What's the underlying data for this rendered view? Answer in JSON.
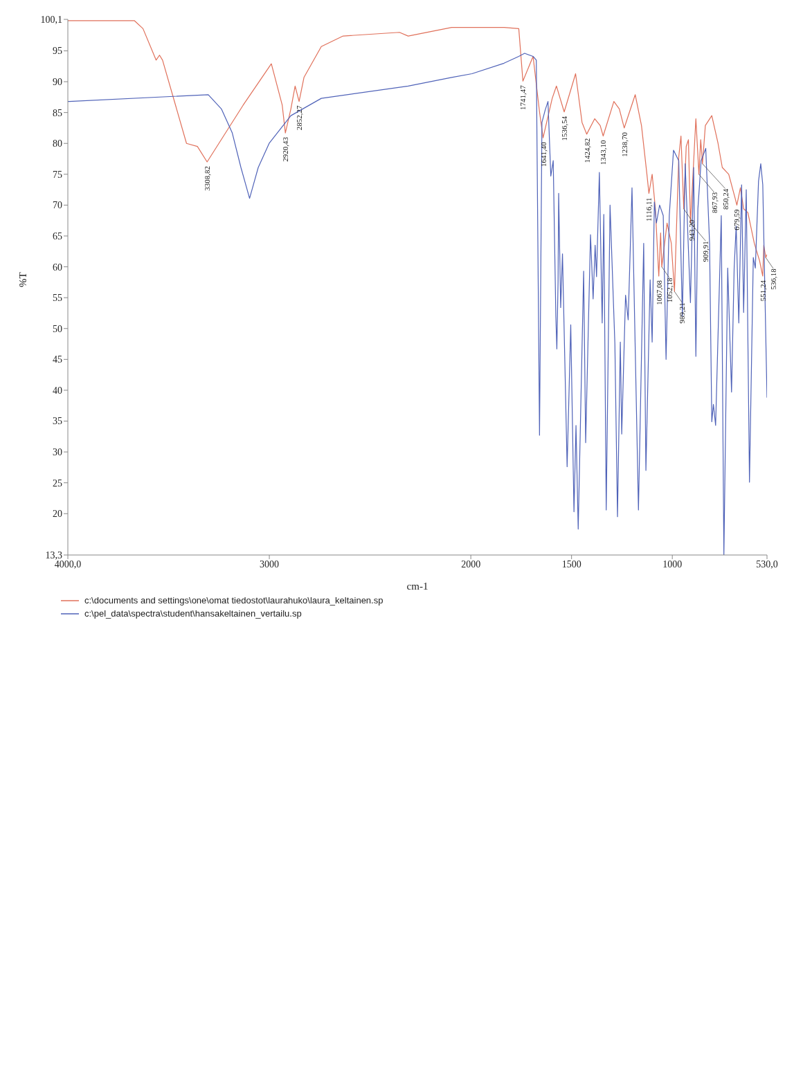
{
  "chart_data": {
    "type": "line",
    "xlabel": "cm-1",
    "ylabel": "%T",
    "xlim": [
      4000,
      530
    ],
    "xticks": [
      {
        "value": 4000,
        "label": "4000,0"
      },
      3000,
      2000,
      1500,
      1000,
      {
        "value": 530,
        "label": "530,0"
      }
    ],
    "ylim": [
      13.3,
      100.1
    ],
    "yticks": [
      {
        "value": 13.3,
        "label": "13,3"
      },
      20,
      25,
      30,
      35,
      40,
      45,
      50,
      55,
      60,
      65,
      70,
      75,
      80,
      85,
      90,
      95,
      {
        "value": 100.1,
        "label": "100,1"
      }
    ],
    "grid": false,
    "legend": "bottom",
    "marker": "none",
    "line_style": "solid",
    "series": [
      {
        "name": "c:\\documents and settings\\one\\omat tiedostot\\laurahuko\\laura_keltainen.sp",
        "color": "#e0705a",
        "x": [
          4000,
          3670,
          3627,
          3562,
          3545,
          3530,
          3411,
          3357,
          3308.82,
          3130,
          2990,
          2936,
          2920.43,
          2893,
          2872,
          2852.27,
          2828,
          2742,
          2634,
          2354,
          2311,
          2095,
          1835,
          1762,
          1741.47,
          1691,
          1659,
          1641.4,
          1596,
          1575,
          1536.54,
          1480,
          1448,
          1424.82,
          1385,
          1358,
          1343.1,
          1290,
          1263,
          1238.7,
          1184,
          1153,
          1126,
          1116.11,
          1100,
          1084,
          1067.08,
          1058,
          1052.18,
          1026,
          1005,
          989.21,
          968,
          957,
          943.2,
          931,
          920,
          909.91,
          883,
          867.93,
          859,
          850.24,
          836,
          804,
          773,
          752,
          720,
          688,
          679.59,
          662,
          646,
          625,
          593,
          567,
          551.24,
          546,
          536.18,
          530
        ],
        "values": [
          99.9,
          99.9,
          98.6,
          93.5,
          94.3,
          93.5,
          80,
          79.5,
          77,
          86.2,
          92.9,
          86.2,
          81.7,
          85.6,
          89.3,
          86.8,
          90.7,
          95.7,
          97.4,
          98,
          97.4,
          98.8,
          98.8,
          98.6,
          90.1,
          94.1,
          85.1,
          80.9,
          87.3,
          89.3,
          85.1,
          91.3,
          83.4,
          81.5,
          84,
          82.9,
          81.2,
          86.8,
          85.6,
          82.5,
          87.9,
          82.9,
          75,
          71.9,
          75,
          69.4,
          58.5,
          65.5,
          60,
          67.1,
          63.8,
          56,
          77.8,
          81.2,
          69.4,
          79.5,
          80.6,
          67.1,
          84,
          75,
          80.6,
          76.7,
          82.9,
          84.5,
          80,
          76.1,
          75,
          71.1,
          70,
          72.8,
          69.4,
          68.8,
          63.8,
          61,
          58.5,
          63.5,
          61.5,
          62
        ]
      },
      {
        "name": "c:\\pel_data\\spectra\\student\\hansakeltainen_vertailu.sp",
        "color": "#4f62b8",
        "x": [
          4000,
          3993,
          3303,
          3238,
          3184,
          3141,
          3098,
          3055,
          3001,
          2893,
          2742,
          2311,
          2095,
          1994,
          1835,
          1762,
          1733,
          1691,
          1675,
          1659,
          1647,
          1631,
          1617,
          1603,
          1591,
          1578,
          1573,
          1567,
          1564,
          1554,
          1545,
          1522,
          1504,
          1488,
          1478,
          1467,
          1440,
          1430,
          1406,
          1393,
          1383,
          1376,
          1362,
          1348,
          1340,
          1328,
          1309,
          1285,
          1272,
          1258,
          1251,
          1232,
          1219,
          1200,
          1168,
          1142,
          1131,
          1110,
          1100,
          1089,
          1079,
          1063,
          1045,
          1031,
          1015,
          994,
          968,
          950,
          936,
          910,
          894,
          883,
          873,
          857,
          834,
          815,
          804,
          796,
          785,
          757,
          744,
          725,
          706,
          693,
          683,
          670,
          656,
          646,
          633,
          617,
          598,
          588,
          572,
          561,
          551,
          530
        ],
        "values": [
          86.8,
          86.8,
          87.9,
          85.6,
          81.7,
          76.1,
          71.1,
          76.1,
          80,
          84.5,
          87.3,
          89.3,
          90.7,
          91.3,
          93,
          94.1,
          94.6,
          94.1,
          93.5,
          32.7,
          83.4,
          85.4,
          86.8,
          74.7,
          77.2,
          52,
          46.7,
          57.6,
          71.9,
          53.4,
          62.1,
          27.6,
          50.6,
          20.3,
          34.3,
          17.5,
          59.3,
          31.5,
          65.2,
          54.8,
          63.5,
          58.4,
          75.3,
          50.9,
          68.5,
          20.6,
          70,
          47.5,
          19.5,
          47.8,
          32.9,
          55.4,
          51.4,
          72.8,
          20.6,
          63.8,
          27,
          57.9,
          47.8,
          70.5,
          67.1,
          70,
          68.3,
          45,
          68.3,
          78.9,
          77.2,
          52,
          76.7,
          54.2,
          76.1,
          45.5,
          69.4,
          77.2,
          79.2,
          63.8,
          34.9,
          37.7,
          34.3,
          68.3,
          13.3,
          59.8,
          39.7,
          59.8,
          66.6,
          50.9,
          73.3,
          52.6,
          72.5,
          25.1,
          61.5,
          59.8,
          73.9,
          76.7,
          73.3,
          38.8
        ]
      }
    ],
    "annotations": [
      {
        "text": "3308,82",
        "x": 3308.82,
        "y": 77
      },
      {
        "text": "2920,43",
        "x": 2920.43,
        "y": 81.7
      },
      {
        "text": "2852,27",
        "x": 2852.27,
        "y": 86.8
      },
      {
        "text": "1741,47",
        "x": 1741.47,
        "y": 90.1
      },
      {
        "text": "1641,40",
        "x": 1641.4,
        "y": 80.9
      },
      {
        "text": "1536,54",
        "x": 1536.54,
        "y": 85.1
      },
      {
        "text": "1424,82",
        "x": 1424.82,
        "y": 81.5
      },
      {
        "text": "1343,10",
        "x": 1343.1,
        "y": 81.2
      },
      {
        "text": "1238,70",
        "x": 1238.7,
        "y": 82.5
      },
      {
        "text": "1116,11",
        "x": 1116.11,
        "y": 71.9
      },
      {
        "text": "1067,08",
        "x": 1067.08,
        "y": 58.5
      },
      {
        "text": "1052,18",
        "x": 1052.18,
        "y": 60
      },
      {
        "text": "989,21",
        "x": 989.21,
        "y": 56
      },
      {
        "text": "943,20",
        "x": 943.2,
        "y": 69.4
      },
      {
        "text": "909,91",
        "x": 909.91,
        "y": 67.1
      },
      {
        "text": "867,93",
        "x": 867.93,
        "y": 75
      },
      {
        "text": "850,24",
        "x": 850.24,
        "y": 76.7
      },
      {
        "text": "679,59",
        "x": 679.59,
        "y": 70
      },
      {
        "text": "551,24",
        "x": 551.24,
        "y": 58.5
      },
      {
        "text": "536,18",
        "x": 536.18,
        "y": 61.5
      }
    ]
  }
}
